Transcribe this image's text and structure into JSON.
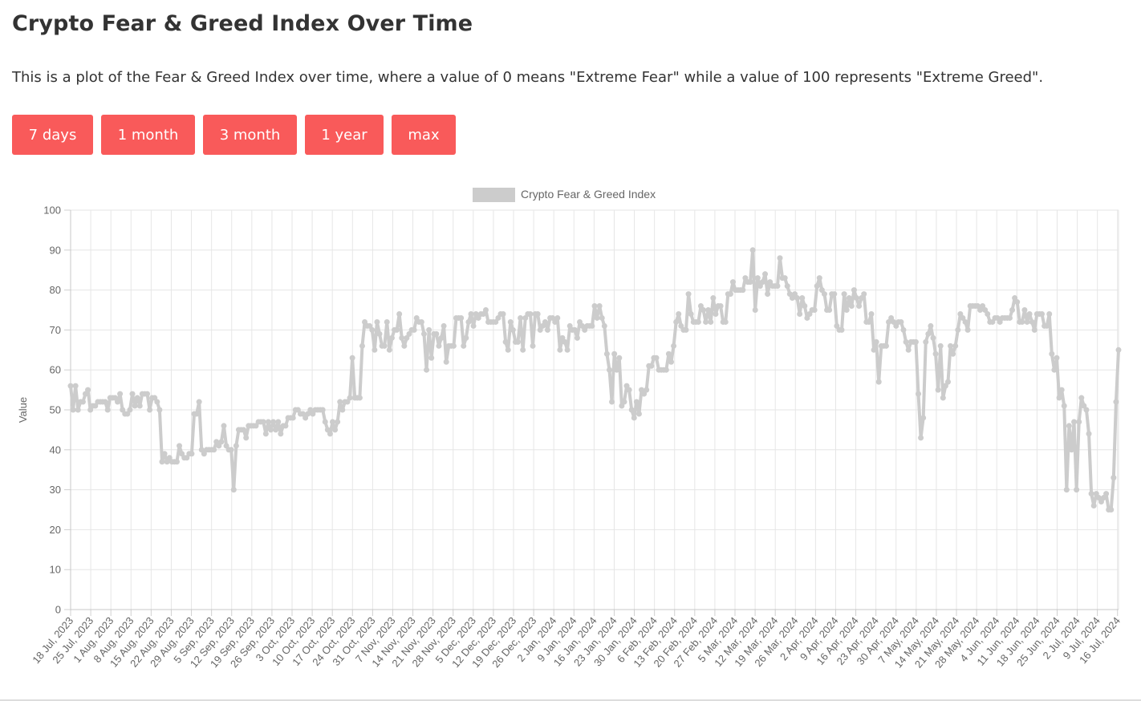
{
  "page": {
    "title": "Crypto Fear & Greed Index Over Time",
    "description": "This is a plot of the Fear & Greed Index over time, where a value of 0 means \"Extreme Fear\" while a value of 100 represents \"Extreme Greed\"."
  },
  "range_buttons": [
    "7 days",
    "1 month",
    "3 month",
    "1 year",
    "max"
  ],
  "colors": {
    "button": "#f95a5a",
    "series": "#cccccc",
    "grid": "#e6e6e6"
  },
  "chart_data": {
    "type": "line",
    "title": "",
    "xlabel": "",
    "ylabel": "Value",
    "ylim": [
      0,
      100
    ],
    "y_ticks": [
      0,
      10,
      20,
      30,
      40,
      50,
      60,
      70,
      80,
      90,
      100
    ],
    "grid": true,
    "legend_position": "top-center",
    "x_tick_labels": [
      "18 Jul, 2023",
      "25 Jul, 2023",
      "1 Aug, 2023",
      "8 Aug, 2023",
      "15 Aug, 2023",
      "22 Aug, 2023",
      "29 Aug, 2023",
      "5 Sep, 2023",
      "12 Sep, 2023",
      "19 Sep, 2023",
      "26 Sep, 2023",
      "3 Oct, 2023",
      "10 Oct, 2023",
      "17 Oct, 2023",
      "24 Oct, 2023",
      "31 Oct, 2023",
      "7 Nov, 2023",
      "14 Nov, 2023",
      "21 Nov, 2023",
      "28 Nov, 2023",
      "5 Dec, 2023",
      "12 Dec, 2023",
      "19 Dec, 2023",
      "26 Dec, 2023",
      "2 Jan, 2024",
      "9 Jan, 2024",
      "16 Jan, 2024",
      "23 Jan, 2024",
      "30 Jan, 2024",
      "6 Feb, 2024",
      "13 Feb, 2024",
      "20 Feb, 2024",
      "27 Feb, 2024",
      "5 Mar, 2024",
      "12 Mar, 2024",
      "19 Mar, 2024",
      "26 Mar, 2024",
      "2 Apr, 2024",
      "9 Apr, 2024",
      "16 Apr, 2024",
      "23 Apr, 2024",
      "30 Apr, 2024",
      "7 May, 2024",
      "14 May, 2024",
      "21 May, 2024",
      "28 May, 2024",
      "4 Jun, 2024",
      "11 Jun, 2024",
      "18 Jun, 2024",
      "25 Jun, 2024",
      "2 Jul, 2024",
      "9 Jul, 2024",
      "16 Jul, 2024"
    ],
    "series": [
      {
        "name": "Crypto Fear & Greed Index",
        "color": "#cccccc",
        "values": [
          56,
          50,
          56,
          50,
          52,
          52,
          54,
          55,
          50,
          51,
          51,
          52,
          52,
          52,
          52,
          50,
          53,
          53,
          53,
          52,
          54,
          50,
          49,
          49,
          50,
          54,
          51,
          53,
          51,
          54,
          54,
          54,
          50,
          53,
          53,
          52,
          50,
          37,
          39,
          37,
          38,
          37,
          37,
          37,
          41,
          39,
          38,
          38,
          39,
          39,
          49,
          49,
          52,
          40,
          39,
          40,
          40,
          40,
          40,
          42,
          41,
          42,
          46,
          41,
          40,
          40,
          30,
          41,
          45,
          45,
          45,
          43,
          46,
          46,
          46,
          46,
          47,
          47,
          47,
          44,
          47,
          45,
          47,
          45,
          47,
          44,
          46,
          46,
          48,
          48,
          48,
          50,
          50,
          49,
          49,
          48,
          49,
          50,
          49,
          50,
          50,
          50,
          50,
          47,
          45,
          44,
          47,
          45,
          47,
          52,
          50,
          52,
          52,
          53,
          63,
          53,
          53,
          53,
          66,
          72,
          71,
          71,
          70,
          65,
          72,
          69,
          66,
          66,
          72,
          65,
          68,
          70,
          70,
          74,
          68,
          66,
          68,
          69,
          70,
          70,
          73,
          72,
          72,
          69,
          60,
          70,
          63,
          69,
          69,
          66,
          68,
          71,
          62,
          66,
          66,
          66,
          73,
          73,
          73,
          66,
          68,
          72,
          74,
          71,
          74,
          73,
          74,
          74,
          75,
          72,
          72,
          72,
          72,
          73,
          74,
          74,
          67,
          65,
          72,
          70,
          67,
          67,
          73,
          65,
          73,
          74,
          74,
          66,
          74,
          74,
          70,
          71,
          72,
          70,
          73,
          73,
          72,
          73,
          65,
          68,
          67,
          65,
          71,
          70,
          70,
          68,
          72,
          71,
          70,
          71,
          71,
          71,
          76,
          73,
          76,
          73,
          71,
          64,
          60,
          52,
          64,
          60,
          63,
          51,
          52,
          56,
          55,
          50,
          48,
          52,
          49,
          55,
          54,
          55,
          61,
          61,
          63,
          63,
          60,
          60,
          60,
          60,
          64,
          62,
          66,
          72,
          74,
          71,
          70,
          70,
          79,
          74,
          72,
          72,
          72,
          76,
          75,
          72,
          75,
          72,
          78,
          74,
          76,
          76,
          72,
          72,
          79,
          79,
          82,
          80,
          80,
          80,
          80,
          83,
          82,
          82,
          90,
          75,
          83,
          81,
          82,
          84,
          79,
          82,
          81,
          81,
          81,
          88,
          83,
          83,
          81,
          79,
          78,
          79,
          78,
          74,
          78,
          76,
          73,
          74,
          75,
          75,
          81,
          83,
          80,
          79,
          75,
          75,
          79,
          79,
          71,
          70,
          70,
          79,
          75,
          78,
          76,
          80,
          78,
          76,
          78,
          79,
          72,
          72,
          74,
          65,
          67,
          57,
          66,
          66,
          66,
          72,
          73,
          72,
          71,
          72,
          72,
          70,
          67,
          65,
          67,
          67,
          67,
          54,
          43,
          48,
          67,
          69,
          71,
          68,
          64,
          55,
          66,
          53,
          56,
          57,
          66,
          64,
          66,
          70,
          74,
          73,
          72,
          70,
          76,
          76,
          76,
          76,
          75,
          76,
          75,
          74,
          72,
          72,
          73,
          73,
          72,
          73,
          73,
          73,
          73,
          75,
          78,
          77,
          72,
          72,
          75,
          72,
          74,
          72,
          70,
          74,
          74,
          74,
          71,
          71,
          74,
          64,
          60,
          63,
          53,
          55,
          51,
          30,
          46,
          40,
          47,
          30,
          47,
          53,
          51,
          50,
          44,
          29,
          26,
          29,
          28,
          27,
          28,
          29,
          25,
          25,
          33,
          52,
          65
        ]
      }
    ]
  }
}
